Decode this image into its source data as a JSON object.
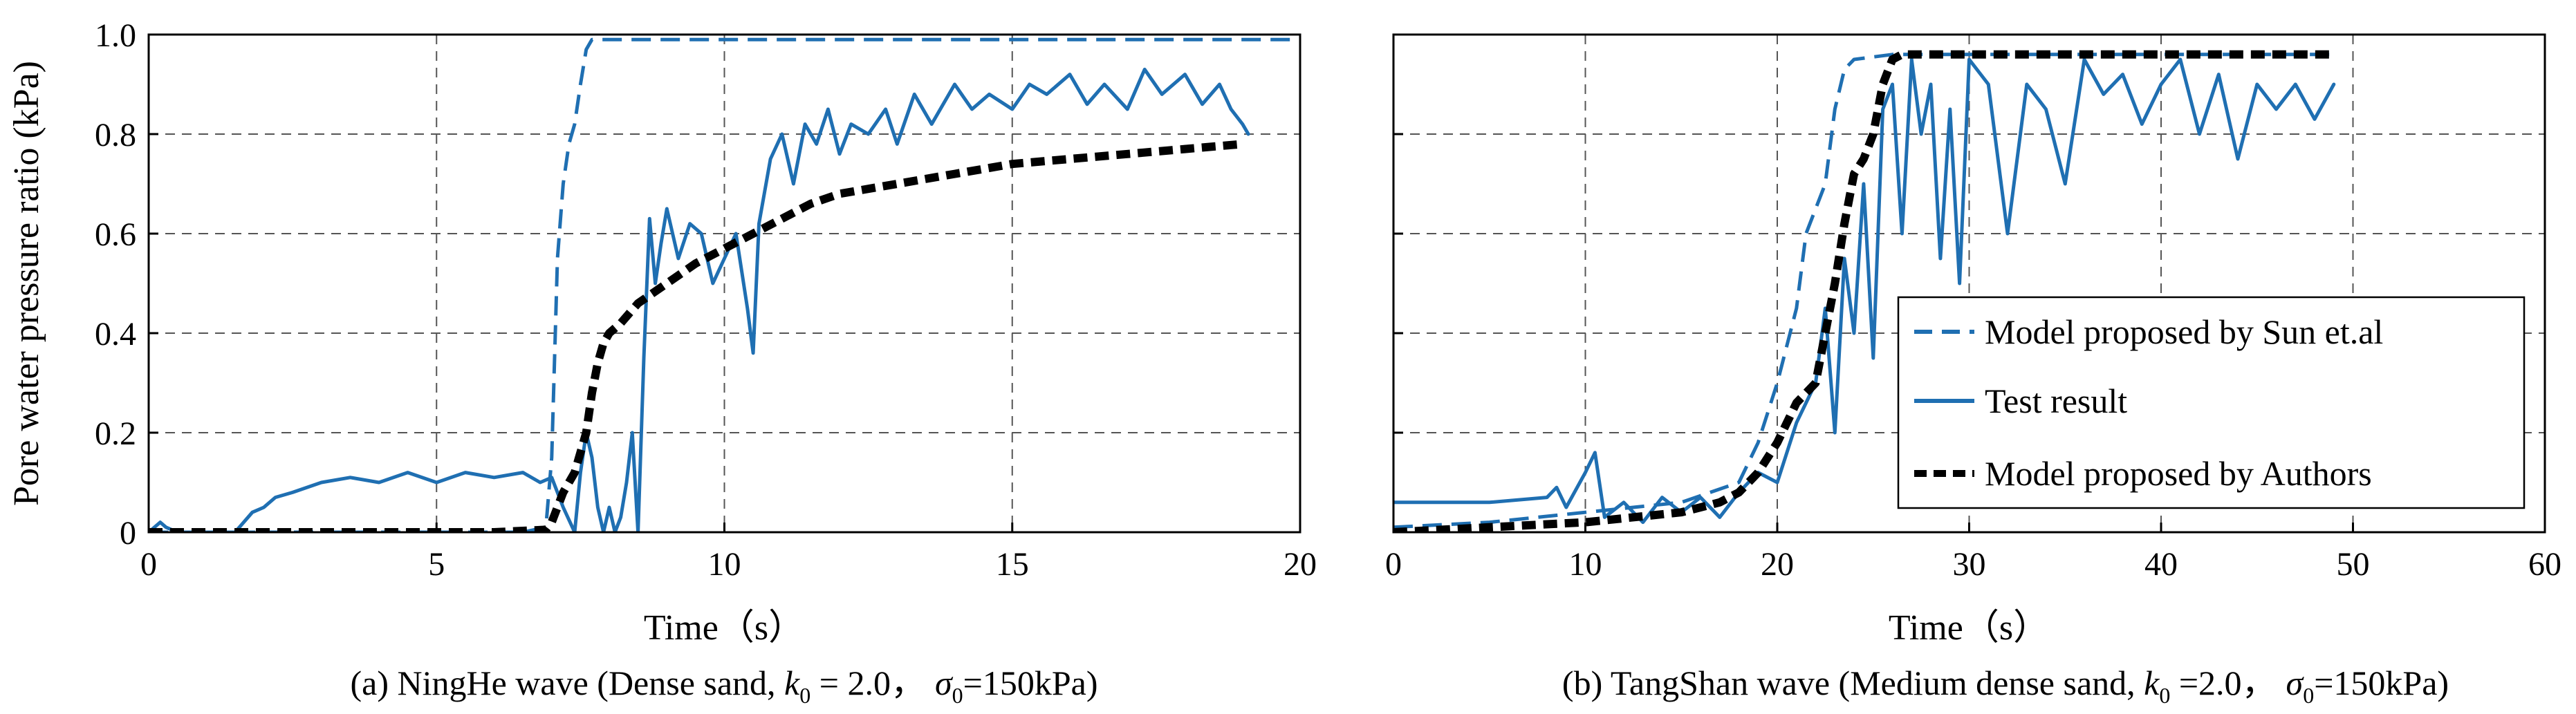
{
  "colors": {
    "model_sun": "#1f6fb2",
    "test": "#1f6fb2",
    "model_authors": "#000000",
    "grid": "#555555"
  },
  "chart_data": [
    {
      "type": "line",
      "title": "",
      "caption": {
        "prefix": "(a) NingHe wave (Dense sand,",
        "k_label": "k",
        "k_sub": "0",
        "k_value": " = 2.0，",
        "sigma_label": "σ",
        "sigma_sub": "0",
        "sigma_value": "=150kPa)"
      },
      "xlabel": "Time（s）",
      "ylabel": "Pore water pressure ratio (kPa)",
      "xlim": [
        0,
        20
      ],
      "ylim": [
        0,
        1.0
      ],
      "xticks": [
        0,
        5,
        10,
        15,
        20
      ],
      "xtick_labels": [
        "0",
        "5",
        "10",
        "15",
        "20"
      ],
      "yticks": [
        0,
        0.2,
        0.4,
        0.6,
        0.8,
        1.0
      ],
      "ytick_labels": [
        "0",
        "0.2",
        "0.4",
        "0.6",
        "0.8",
        "1.0"
      ],
      "grid": true,
      "series": [
        {
          "name": "Model proposed by Sun et.al",
          "style": "dashed",
          "color": "#1f6fb2",
          "x": [
            0,
            6.5,
            6.9,
            7.0,
            7.1,
            7.2,
            7.3,
            7.4,
            7.5,
            7.6,
            7.7,
            20
          ],
          "y": [
            0,
            0,
            0.01,
            0.15,
            0.55,
            0.7,
            0.78,
            0.82,
            0.9,
            0.97,
            0.99,
            0.99
          ]
        },
        {
          "name": "Test result",
          "style": "solid",
          "color": "#1f6fb2",
          "x": [
            0,
            0.2,
            0.3,
            0.5,
            1.5,
            1.8,
            2.0,
            2.2,
            2.5,
            3.0,
            3.5,
            4.0,
            4.5,
            5.0,
            5.5,
            6.0,
            6.5,
            6.8,
            7.0,
            7.2,
            7.4,
            7.5,
            7.6,
            7.7,
            7.8,
            7.9,
            8.0,
            8.1,
            8.2,
            8.3,
            8.4,
            8.5,
            8.6,
            8.7,
            8.8,
            8.9,
            9.0,
            9.2,
            9.4,
            9.6,
            9.8,
            10.0,
            10.2,
            10.4,
            10.5,
            10.6,
            10.8,
            11.0,
            11.2,
            11.4,
            11.6,
            11.8,
            12.0,
            12.2,
            12.5,
            12.8,
            13.0,
            13.3,
            13.6,
            14.0,
            14.3,
            14.6,
            15.0,
            15.3,
            15.6,
            16.0,
            16.3,
            16.6,
            17.0,
            17.3,
            17.6,
            18.0,
            18.3,
            18.6,
            18.8,
            19.0,
            19.1
          ],
          "y": [
            0,
            0.02,
            0.01,
            0,
            0,
            0.04,
            0.05,
            0.07,
            0.08,
            0.1,
            0.11,
            0.1,
            0.12,
            0.1,
            0.12,
            0.11,
            0.12,
            0.1,
            0.11,
            0.05,
            0.0,
            0.12,
            0.2,
            0.15,
            0.05,
            0.0,
            0.05,
            0.0,
            0.03,
            0.1,
            0.2,
            0.0,
            0.35,
            0.63,
            0.5,
            0.58,
            0.65,
            0.55,
            0.62,
            0.6,
            0.5,
            0.55,
            0.6,
            0.45,
            0.36,
            0.62,
            0.75,
            0.8,
            0.7,
            0.82,
            0.78,
            0.85,
            0.76,
            0.82,
            0.8,
            0.85,
            0.78,
            0.88,
            0.82,
            0.9,
            0.85,
            0.88,
            0.85,
            0.9,
            0.88,
            0.92,
            0.86,
            0.9,
            0.85,
            0.93,
            0.88,
            0.92,
            0.86,
            0.9,
            0.85,
            0.82,
            0.8
          ]
        },
        {
          "name": "Model proposed by Authors",
          "style": "bold-dashed",
          "color": "#000000",
          "x": [
            0,
            6.0,
            6.9,
            7.0,
            7.2,
            7.4,
            7.6,
            7.7,
            7.8,
            7.9,
            8.0,
            8.2,
            8.5,
            9.0,
            9.5,
            10.0,
            10.5,
            11.0,
            11.5,
            12.0,
            13.0,
            14.0,
            15.0,
            16.0,
            17.0,
            18.0,
            19.0
          ],
          "y": [
            0,
            0,
            0.005,
            0.02,
            0.08,
            0.12,
            0.2,
            0.28,
            0.34,
            0.38,
            0.4,
            0.42,
            0.46,
            0.5,
            0.54,
            0.57,
            0.6,
            0.63,
            0.66,
            0.68,
            0.7,
            0.72,
            0.74,
            0.75,
            0.76,
            0.77,
            0.78
          ]
        }
      ]
    },
    {
      "type": "line",
      "title": "",
      "caption": {
        "prefix": "(b) TangShan wave (Medium dense sand,",
        "k_label": "k",
        "k_sub": "0",
        "k_value": " =2.0，",
        "sigma_label": "σ",
        "sigma_sub": "0",
        "sigma_value": "=150kPa)"
      },
      "xlabel": "Time（s）",
      "ylabel": "",
      "xlim": [
        0,
        60
      ],
      "ylim": [
        0,
        1.0
      ],
      "xticks": [
        0,
        10,
        20,
        30,
        40,
        50,
        60
      ],
      "xtick_labels": [
        "0",
        "10",
        "20",
        "30",
        "40",
        "50",
        "60"
      ],
      "yticks": [
        0,
        0.2,
        0.4,
        0.6,
        0.8,
        1.0
      ],
      "ytick_labels": [
        "",
        "",
        "",
        "",
        "",
        ""
      ],
      "grid": true,
      "legend": {
        "position": "right-middle",
        "entries": [
          "Model proposed by Sun et.al",
          "Test result",
          "Model proposed by Authors"
        ]
      },
      "series": [
        {
          "name": "Model proposed by Sun et.al",
          "style": "dashed",
          "color": "#1f6fb2",
          "x": [
            0,
            5,
            10,
            15,
            18,
            19,
            20,
            21,
            21.5,
            22,
            22.5,
            23,
            23.5,
            24,
            26,
            49
          ],
          "y": [
            0.01,
            0.02,
            0.04,
            0.06,
            0.1,
            0.18,
            0.3,
            0.45,
            0.6,
            0.65,
            0.7,
            0.85,
            0.93,
            0.95,
            0.96,
            0.96
          ]
        },
        {
          "name": "Test result",
          "style": "solid",
          "color": "#1f6fb2",
          "x": [
            0,
            5,
            8,
            8.5,
            9,
            10,
            10.5,
            11,
            12,
            13,
            14,
            15,
            16,
            17,
            18,
            19,
            20,
            21,
            22,
            22.5,
            23,
            23.5,
            24,
            24.5,
            25,
            25.5,
            26,
            26.5,
            27,
            27.5,
            28,
            28.5,
            29,
            29.5,
            30,
            31,
            32,
            33,
            34,
            35,
            36,
            37,
            38,
            39,
            40,
            41,
            42,
            43,
            44,
            45,
            46,
            47,
            48,
            49
          ],
          "y": [
            0.06,
            0.06,
            0.07,
            0.09,
            0.05,
            0.12,
            0.16,
            0.03,
            0.06,
            0.02,
            0.07,
            0.04,
            0.07,
            0.03,
            0.08,
            0.12,
            0.1,
            0.22,
            0.3,
            0.45,
            0.2,
            0.55,
            0.4,
            0.7,
            0.35,
            0.85,
            0.9,
            0.6,
            0.95,
            0.8,
            0.9,
            0.55,
            0.85,
            0.5,
            0.95,
            0.9,
            0.6,
            0.9,
            0.85,
            0.7,
            0.95,
            0.88,
            0.92,
            0.82,
            0.9,
            0.95,
            0.8,
            0.92,
            0.75,
            0.9,
            0.85,
            0.9,
            0.83,
            0.9
          ]
        },
        {
          "name": "Model proposed by Authors",
          "style": "bold-dashed",
          "color": "#000000",
          "x": [
            0,
            5,
            10,
            15,
            17,
            18,
            19,
            20,
            21,
            22,
            22.5,
            23,
            23.5,
            24,
            24.5,
            25,
            25.5,
            26,
            26.5,
            27,
            49
          ],
          "y": [
            0,
            0.01,
            0.02,
            0.04,
            0.06,
            0.08,
            0.12,
            0.18,
            0.26,
            0.3,
            0.4,
            0.5,
            0.62,
            0.72,
            0.75,
            0.8,
            0.9,
            0.95,
            0.96,
            0.96,
            0.96
          ]
        }
      ]
    }
  ]
}
